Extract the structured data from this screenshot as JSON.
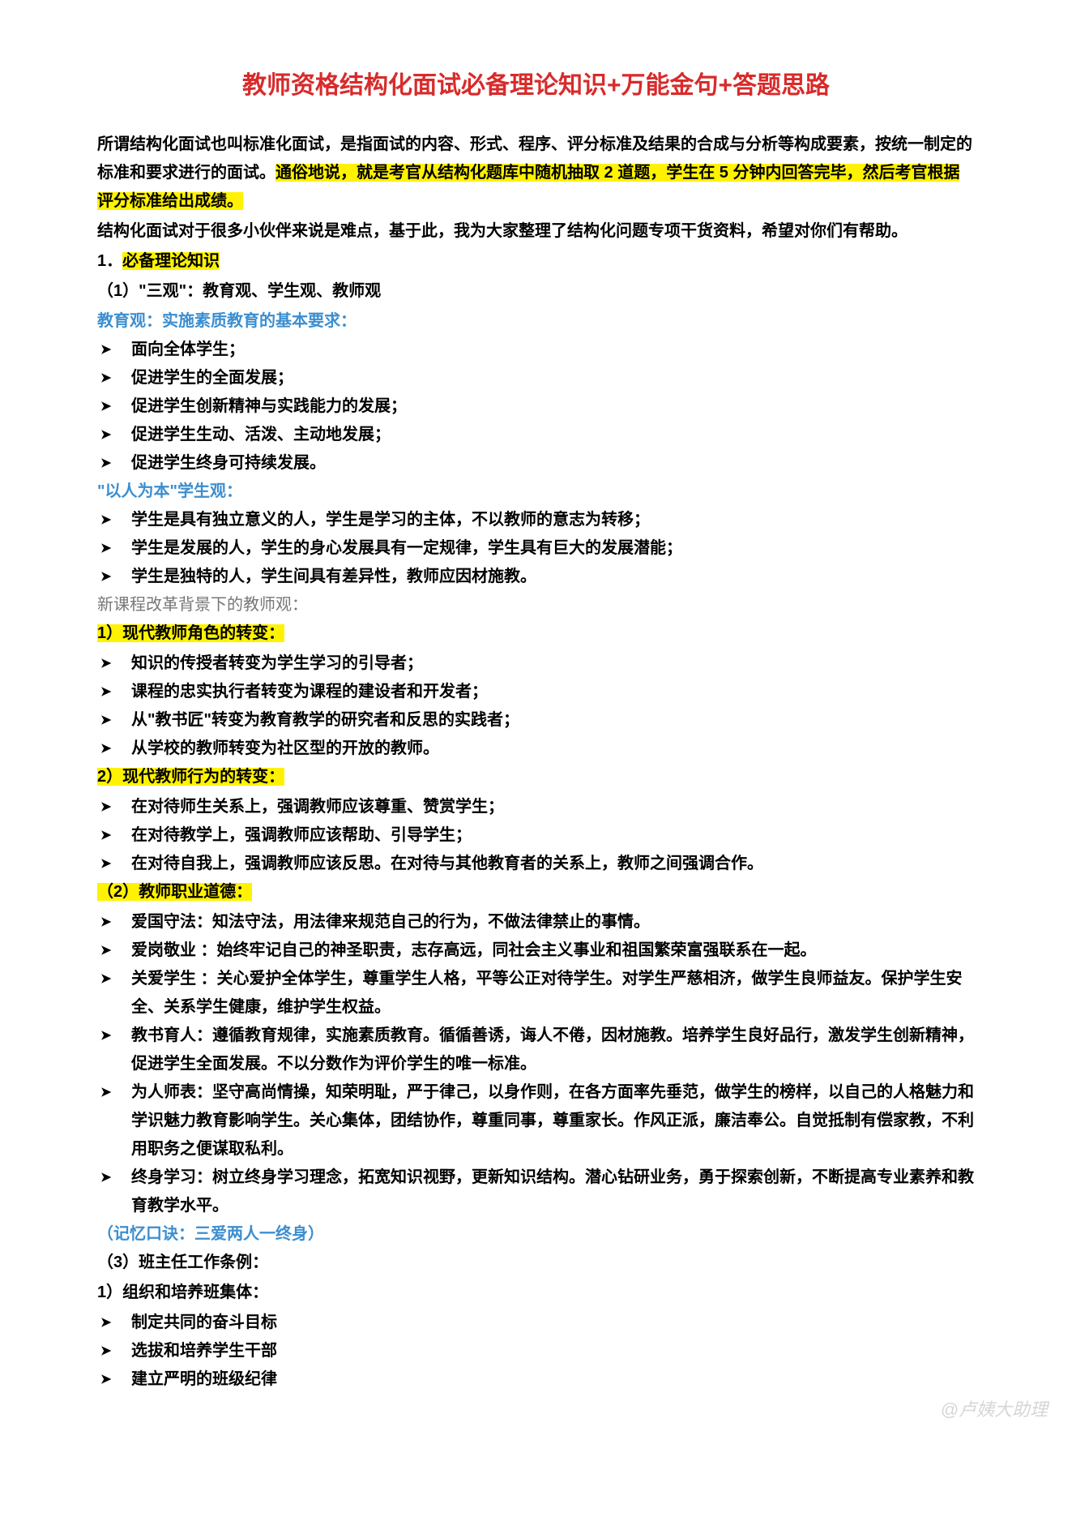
{
  "title": "教师资格结构化面试必备理论知识+万能金句+答题思路",
  "intro": {
    "p1a": "所谓结构化面试也叫标准化面试，是指面试的内容、形式、程序、评分标准及结果的合成与分析等构成要素，按统一制定的标准和要求进行的面试。",
    "p1b": "通俗地说，就是考官从结构化题库中随机抽取 2 道题，学生在 5 分钟内回答完毕，然后考官根据评分标准给出成绩。",
    "p2": "结构化面试对于很多小伙伴来说是难点，基于此，我为大家整理了结构化问题专项干货资料，希望对你们有帮助。"
  },
  "s1": {
    "heading": "1．",
    "heading_hl": "必备理论知识",
    "sub1": "（1）\"三观\"：教育观、学生观、教师观",
    "edu_view_label": "教育观：实施素质教育的基本要求：",
    "edu_view": [
      "面向全体学生；",
      "促进学生的全面发展；",
      "促进学生创新精神与实践能力的发展；",
      "促进学生生动、活泼、主动地发展；",
      "促进学生终身可持续发展。"
    ],
    "student_view_label": "\"以人为本\"学生观：",
    "student_view": [
      "学生是具有独立意义的人，学生是学习的主体，不以教师的意志为转移；",
      "学生是发展的人，学生的身心发展具有一定规律，学生具有巨大的发展潜能；",
      "学生是独特的人，学生间具有差异性，教师应因材施教。"
    ],
    "teacher_view_intro": "新课程改革背景下的教师观：",
    "tv1_label": "1）现代教师角色的转变：",
    "tv1": [
      "知识的传授者转变为学生学习的引导者；",
      "课程的忠实执行者转变为课程的建设者和开发者；",
      "从\"教书匠\"转变为教育教学的研究者和反思的实践者；",
      "从学校的教师转变为社区型的开放的教师。"
    ],
    "tv2_label": "2）现代教师行为的转变：",
    "tv2": [
      "在对待师生关系上，强调教师应该尊重、赞赏学生；",
      "在对待教学上，强调教师应该帮助、引导学生；",
      "在对待自我上，强调教师应该反思。在对待与其他教育者的关系上，教师之间强调合作。"
    ],
    "ethics_label": "（2）教师职业道德：",
    "ethics": [
      "爱国守法：知法守法，用法律来规范自己的行为，不做法律禁止的事情。",
      "爱岗敬业 ：始终牢记自己的神圣职责，志存高远，同社会主义事业和祖国繁荣富强联系在一起。",
      "关爱学生 ：关心爱护全体学生，尊重学生人格，平等公正对待学生。对学生严慈相济，做学生良师益友。保护学生安全、关系学生健康，维护学生权益。",
      "教书育人：遵循教育规律，实施素质教育。循循善诱，诲人不倦，因材施教。培养学生良好品行，激发学生创新精神，促进学生全面发展。不以分数作为评价学生的唯一标准。",
      "为人师表：坚守高尚情操，知荣明耻，严于律己，以身作则，在各方面率先垂范，做学生的榜样，以自己的人格魅力和学识魅力教育影响学生。关心集体，团结协作，尊重同事，尊重家长。作风正派，廉洁奉公。自觉抵制有偿家教，不利用职务之便谋取私利。",
      "终身学习：树立终身学习理念，拓宽知识视野，更新知识结构。潜心钻研业务，勇于探索创新，不断提高专业素养和教育教学水平。"
    ],
    "mnemonic": "（记忆口诀：三爱两人一终身）",
    "sub3": "（3）班主任工作条例：",
    "sub3_1": "1）组织和培养班集体：",
    "sub3_1_items": [
      "制定共同的奋斗目标",
      "选拔和培养学生干部",
      "建立严明的班级纪律"
    ]
  },
  "watermark": "@卢姨大助理"
}
